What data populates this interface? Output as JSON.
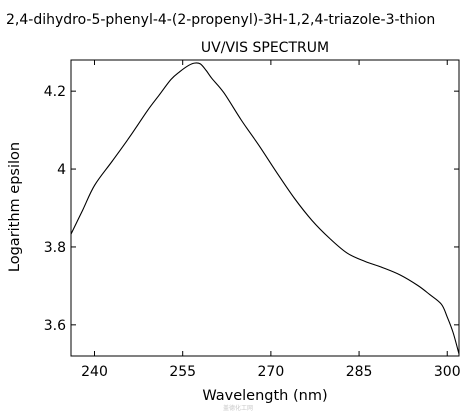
{
  "chart_data": {
    "type": "line",
    "title": "2,4-dihydro-5-phenyl-4-(2-propenyl)-3H-1,2,4-triazole-3-thion",
    "subtitle": "UV/VIS SPECTRUM",
    "xlabel": "Wavelength (nm)",
    "ylabel": "Logarithm epsilon",
    "xlim": [
      236,
      302
    ],
    "ylim": [
      3.52,
      4.28
    ],
    "xticks": [
      240,
      255,
      270,
      285,
      300
    ],
    "yticks": [
      3.6,
      3.8,
      4,
      4.2
    ],
    "ytick_labels": [
      "3.6",
      "3.8",
      "4",
      "4.2"
    ],
    "grid": false,
    "series": [
      {
        "color": "#000000",
        "x": [
          236,
          238,
          240,
          243,
          246,
          249,
          251,
          253,
          254.5,
          256,
          257,
          258,
          259,
          260,
          262,
          265,
          268,
          271,
          274,
          277,
          280,
          283,
          286,
          289,
          292,
          295,
          297,
          299,
          300,
          301,
          302
        ],
        "y": [
          3.833,
          3.895,
          3.958,
          4.02,
          4.083,
          4.15,
          4.19,
          4.23,
          4.25,
          4.266,
          4.272,
          4.27,
          4.253,
          4.232,
          4.196,
          4.125,
          4.06,
          3.991,
          3.925,
          3.868,
          3.822,
          3.784,
          3.763,
          3.747,
          3.728,
          3.701,
          3.678,
          3.653,
          3.62,
          3.58,
          3.525
        ]
      }
    ]
  },
  "watermark": "盖德化工网"
}
